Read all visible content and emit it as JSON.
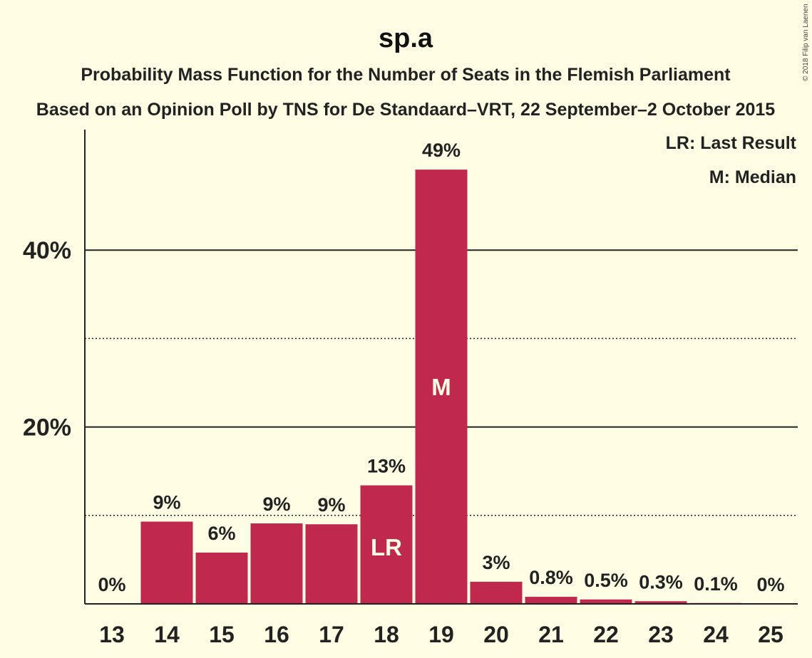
{
  "title": "sp.a",
  "subtitle1": "Probability Mass Function for the Number of Seats in the Flemish Parliament",
  "subtitle2": "Based on an Opinion Poll by TNS for De Standaard–VRT, 22 September–2 October 2015",
  "copyright": "© 2018 Filip van Laenen",
  "legend": {
    "lr": "LR: Last Result",
    "m": "M: Median"
  },
  "colors": {
    "background": "#FFFEE4",
    "bar": "#C0284E",
    "text": "#222222"
  },
  "chart_data": {
    "type": "bar",
    "categories": [
      "13",
      "14",
      "15",
      "16",
      "17",
      "18",
      "19",
      "20",
      "21",
      "22",
      "23",
      "24",
      "25"
    ],
    "values": [
      0,
      9.3,
      5.8,
      9.1,
      9.0,
      13.4,
      49.1,
      2.5,
      0.8,
      0.5,
      0.3,
      0.1,
      0
    ],
    "value_labels": [
      "0%",
      "9%",
      "6%",
      "9%",
      "9%",
      "13%",
      "49%",
      "3%",
      "0.8%",
      "0.5%",
      "0.3%",
      "0.1%",
      "0%"
    ],
    "markers": {
      "18": "LR",
      "19": "M"
    },
    "ylim": [
      0,
      53.5
    ],
    "yticks": [
      {
        "value": 20,
        "label": "20%"
      },
      {
        "value": 40,
        "label": "40%"
      }
    ],
    "grid_solid": [
      20,
      40
    ],
    "grid_dotted": [
      10,
      30
    ],
    "legend_position": "top-right"
  }
}
